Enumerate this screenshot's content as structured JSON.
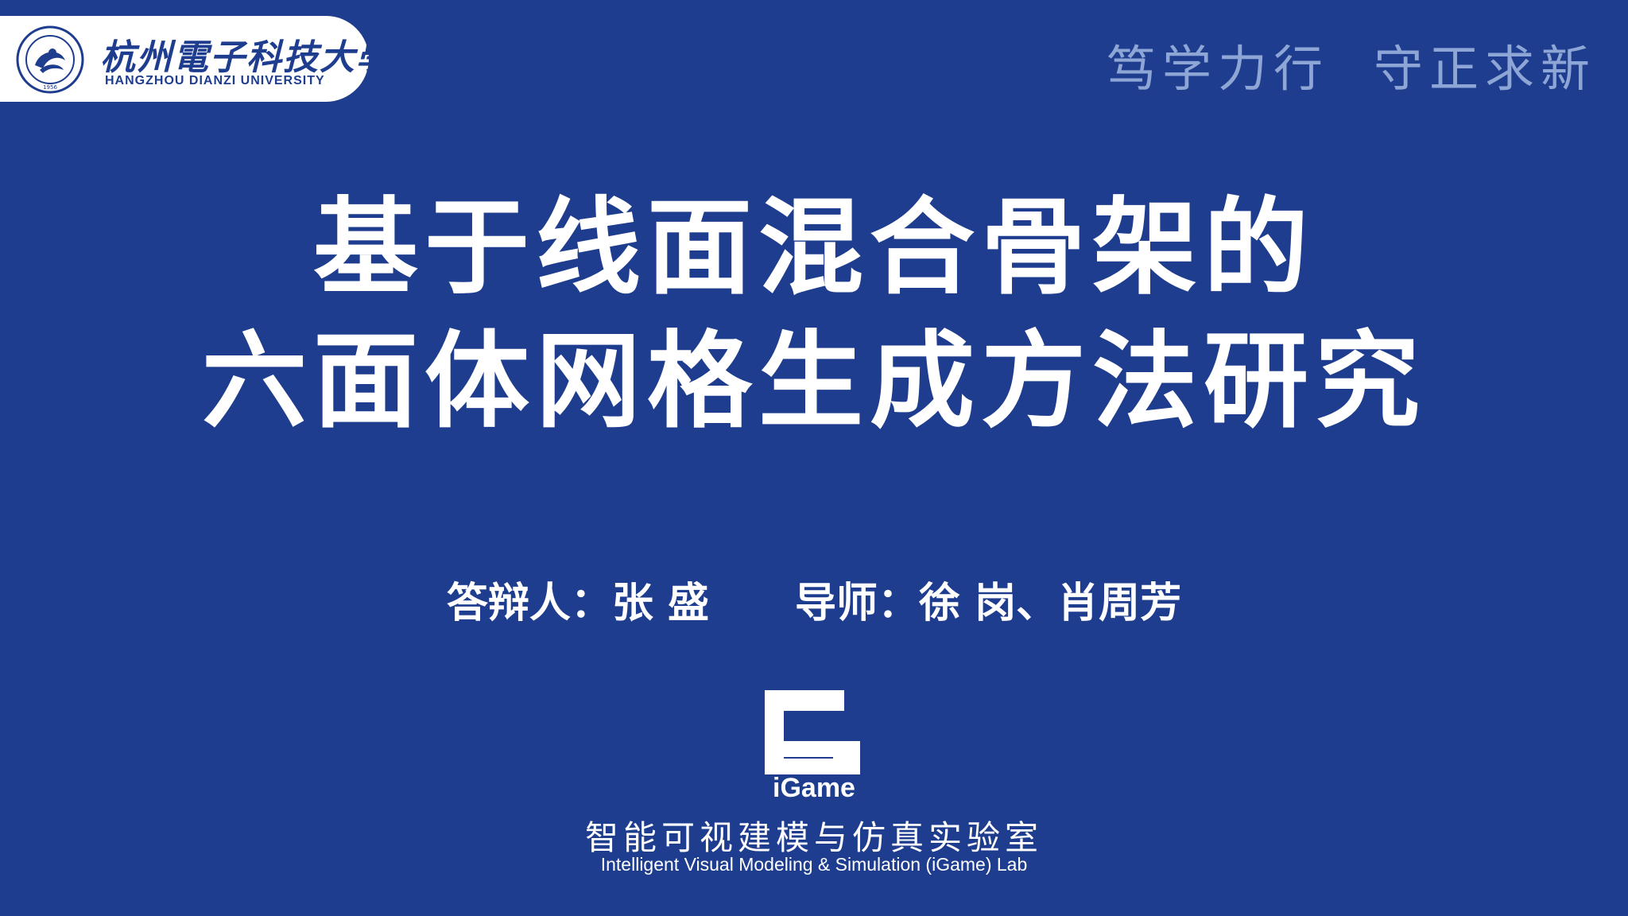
{
  "header": {
    "university_cn": "杭州電子科技大學",
    "university_en": "HANGZHOU DIANZI UNIVERSITY",
    "seal_year": "1956",
    "motto_part1": "笃学力行",
    "motto_part2": "守正求新"
  },
  "title": {
    "line1": "基于线面混合骨架的",
    "line2": "六面体网格生成方法研究"
  },
  "presenters": {
    "defender_label": "答辩人：",
    "defender_name": "张 盛",
    "advisor_label": "导师：",
    "advisor_names": "徐 岗、肖周芳"
  },
  "lab": {
    "logo_text": "iGame",
    "name_cn": "智能可视建模与仿真实验室",
    "name_en": "Intelligent Visual Modeling & Simulation (iGame) Lab"
  },
  "colors": {
    "background": "#1f3d8f",
    "text": "#ffffff",
    "motto": "#8ea6d6"
  }
}
